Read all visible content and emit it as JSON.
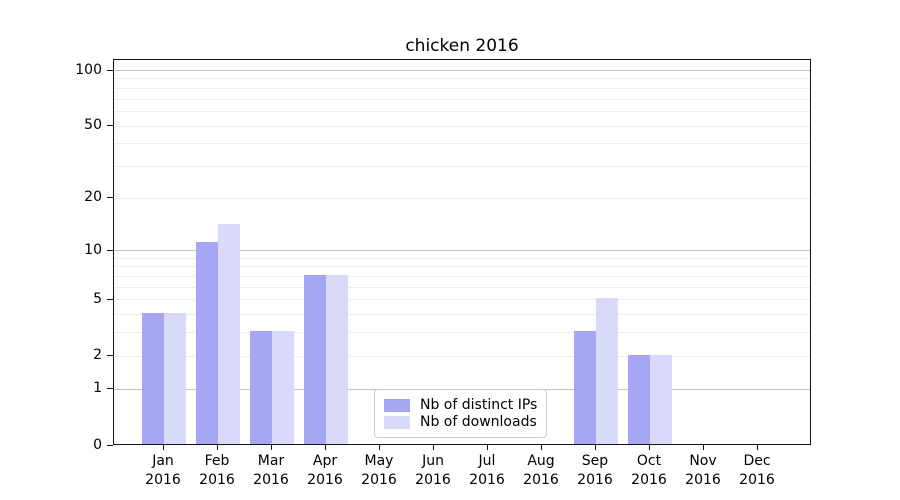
{
  "figure": {
    "title": "chicken 2016"
  },
  "chart_data": {
    "type": "bar",
    "title": "chicken 2016",
    "yscale": "log1p",
    "ylim": [
      0,
      100
    ],
    "grid": "horizontal",
    "x_categories": [
      {
        "month": "Jan",
        "year": "2016"
      },
      {
        "month": "Feb",
        "year": "2016"
      },
      {
        "month": "Mar",
        "year": "2016"
      },
      {
        "month": "Apr",
        "year": "2016"
      },
      {
        "month": "May",
        "year": "2016"
      },
      {
        "month": "Jun",
        "year": "2016"
      },
      {
        "month": "Jul",
        "year": "2016"
      },
      {
        "month": "Aug",
        "year": "2016"
      },
      {
        "month": "Sep",
        "year": "2016"
      },
      {
        "month": "Oct",
        "year": "2016"
      },
      {
        "month": "Nov",
        "year": "2016"
      },
      {
        "month": "Dec",
        "year": "2016"
      }
    ],
    "series": [
      {
        "name": "Nb of distinct IPs",
        "color": "#a6a6f2",
        "values": [
          4,
          11,
          3,
          7,
          0,
          0,
          0,
          0,
          3,
          2,
          0,
          0
        ]
      },
      {
        "name": "Nb of downloads",
        "color": "#d9d9f9",
        "values": [
          4,
          14,
          3,
          7,
          0,
          0,
          0,
          0,
          5,
          2,
          0,
          0
        ]
      }
    ],
    "y_ticks": [
      0,
      1,
      2,
      5,
      10,
      20,
      50,
      100
    ],
    "gridlines": {
      "major": [
        1,
        10,
        100
      ],
      "minor": [
        2,
        3,
        4,
        5,
        6,
        7,
        8,
        9,
        20,
        30,
        40,
        50,
        60,
        70,
        80,
        90
      ]
    },
    "legend": {
      "position": "lower-center",
      "entries": [
        {
          "label": "Nb of distinct IPs",
          "color": "#a6a6f2"
        },
        {
          "label": "Nb of downloads",
          "color": "#d9d9f9"
        }
      ]
    }
  }
}
